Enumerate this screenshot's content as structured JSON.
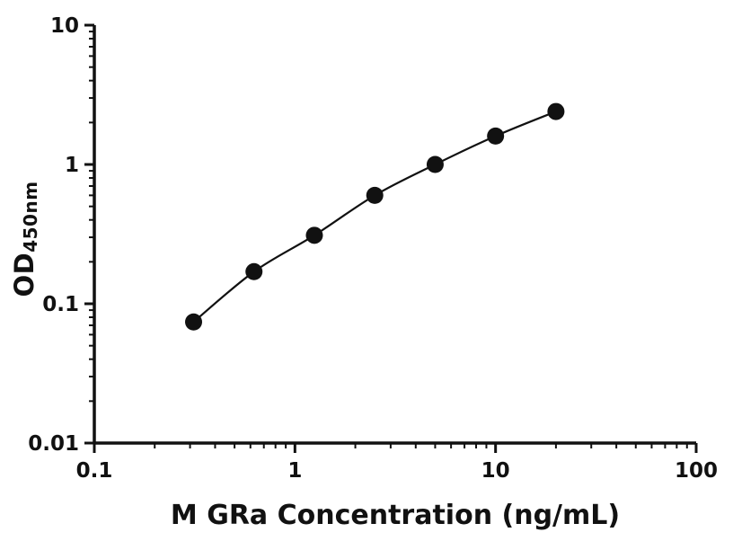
{
  "chart_data": {
    "type": "scatter",
    "title": "",
    "xlabel": "M GRa Concentration (ng/mL)",
    "ylabel_main": "OD",
    "ylabel_sub": "450nm",
    "xscale": "log",
    "yscale": "log",
    "xlim": [
      0.1,
      100
    ],
    "ylim": [
      0.01,
      10
    ],
    "x": [
      0.3125,
      0.625,
      1.25,
      2.5,
      5,
      10,
      20
    ],
    "y": [
      0.074,
      0.17,
      0.31,
      0.6,
      1.0,
      1.6,
      2.4
    ],
    "x_ticks": [
      {
        "v": 0.1,
        "label": "0.1"
      },
      {
        "v": 1,
        "label": "1"
      },
      {
        "v": 10,
        "label": "10"
      },
      {
        "v": 100,
        "label": "100"
      }
    ],
    "y_ticks": [
      {
        "v": 0.01,
        "label": "0.01"
      },
      {
        "v": 0.1,
        "label": "0.1"
      },
      {
        "v": 1,
        "label": "1"
      },
      {
        "v": 10,
        "label": "10"
      }
    ],
    "grid": "off",
    "legend": "none",
    "axis_color": "#111111",
    "line_color": "#111111",
    "marker_color": "#111111"
  }
}
